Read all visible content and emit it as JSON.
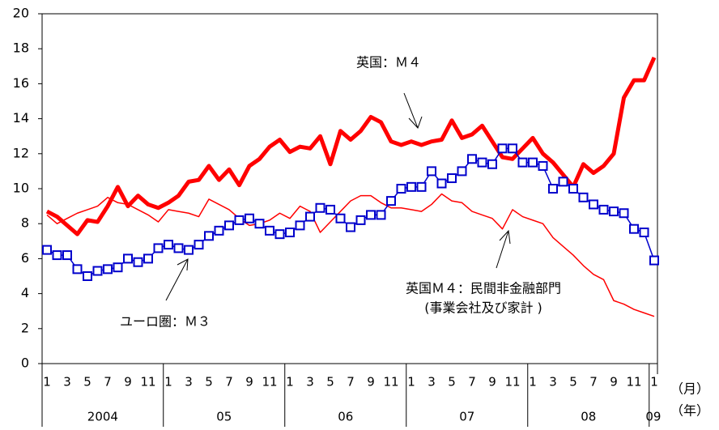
{
  "chart_data": {
    "type": "line",
    "categories": [
      "1",
      null,
      "3",
      null,
      "5",
      null,
      "7",
      null,
      "9",
      null,
      "11",
      null,
      "1",
      null,
      "3",
      null,
      "5",
      null,
      "7",
      null,
      "9",
      null,
      "11",
      null,
      "1",
      null,
      "3",
      null,
      "5",
      null,
      "7",
      null,
      "9",
      null,
      "11",
      null,
      "1",
      null,
      "3",
      null,
      "5",
      null,
      "7",
      null,
      "9",
      null,
      "11",
      null,
      "1",
      null,
      "3",
      null,
      "5",
      null,
      "7",
      null,
      "9",
      null,
      "11",
      null,
      "1"
    ],
    "years": [
      "2004",
      "05",
      "06",
      "07",
      "08",
      "09"
    ],
    "month_unit": "（月）",
    "year_unit": "（年）",
    "ylim": [
      0,
      20
    ],
    "yticks": [
      0,
      2,
      4,
      6,
      8,
      10,
      12,
      14,
      16,
      18,
      20
    ],
    "series": [
      {
        "name": "英国：Ｍ４",
        "color": "#ff0000",
        "line_width": 5,
        "markers": false,
        "values": [
          8.7,
          8.4,
          7.9,
          7.4,
          8.2,
          8.1,
          9.0,
          10.1,
          9.0,
          9.6,
          9.1,
          8.9,
          9.2,
          9.6,
          10.4,
          10.5,
          11.3,
          10.5,
          11.1,
          10.2,
          11.3,
          11.7,
          12.4,
          12.8,
          12.1,
          12.4,
          12.3,
          13.0,
          11.4,
          13.3,
          12.8,
          13.3,
          14.1,
          13.8,
          12.7,
          12.5,
          12.7,
          12.5,
          12.7,
          12.8,
          13.9,
          12.9,
          13.1,
          13.6,
          12.7,
          11.8,
          11.7,
          12.3,
          12.9,
          12.0,
          11.5,
          10.8,
          10.1,
          11.4,
          10.9,
          11.3,
          12.0,
          15.2,
          16.2,
          16.2,
          17.5
        ]
      },
      {
        "name": "英国Ｍ４：民間非金融部門",
        "name_line2": "(事業会社及び家計 )",
        "color": "#ff0000",
        "line_width": 1.5,
        "markers": false,
        "values": [
          8.5,
          8.0,
          8.3,
          8.6,
          8.8,
          9.0,
          9.5,
          9.2,
          9.1,
          8.8,
          8.5,
          8.1,
          8.8,
          8.7,
          8.6,
          8.4,
          9.4,
          9.1,
          8.8,
          8.3,
          7.9,
          8.0,
          8.2,
          8.6,
          8.3,
          9.0,
          8.7,
          7.5,
          8.1,
          8.7,
          9.3,
          9.6,
          9.6,
          9.2,
          8.9,
          8.9,
          8.8,
          8.7,
          9.1,
          9.7,
          9.3,
          9.2,
          8.7,
          8.5,
          8.3,
          7.7,
          8.8,
          8.4,
          8.2,
          8.0,
          7.2,
          6.7,
          6.2,
          5.6,
          5.1,
          4.8,
          3.6,
          3.4,
          3.1,
          2.9,
          2.7
        ]
      },
      {
        "name": "ユーロ圏：Ｍ３",
        "color": "#0000cc",
        "line_width": 1.5,
        "markers": true,
        "values": [
          6.5,
          6.2,
          6.2,
          5.4,
          5.0,
          5.3,
          5.4,
          5.5,
          6.0,
          5.8,
          6.0,
          6.6,
          6.8,
          6.6,
          6.5,
          6.8,
          7.3,
          7.6,
          7.9,
          8.2,
          8.3,
          8.0,
          7.6,
          7.4,
          7.5,
          7.9,
          8.4,
          8.9,
          8.8,
          8.3,
          7.8,
          8.2,
          8.5,
          8.5,
          9.3,
          10.0,
          10.1,
          10.1,
          11.0,
          10.3,
          10.6,
          11.0,
          11.7,
          11.5,
          11.4,
          12.3,
          12.3,
          11.5,
          11.5,
          11.3,
          10.0,
          10.4,
          10.0,
          9.5,
          9.1,
          8.8,
          8.7,
          8.6,
          7.7,
          7.5,
          5.9
        ]
      }
    ]
  }
}
